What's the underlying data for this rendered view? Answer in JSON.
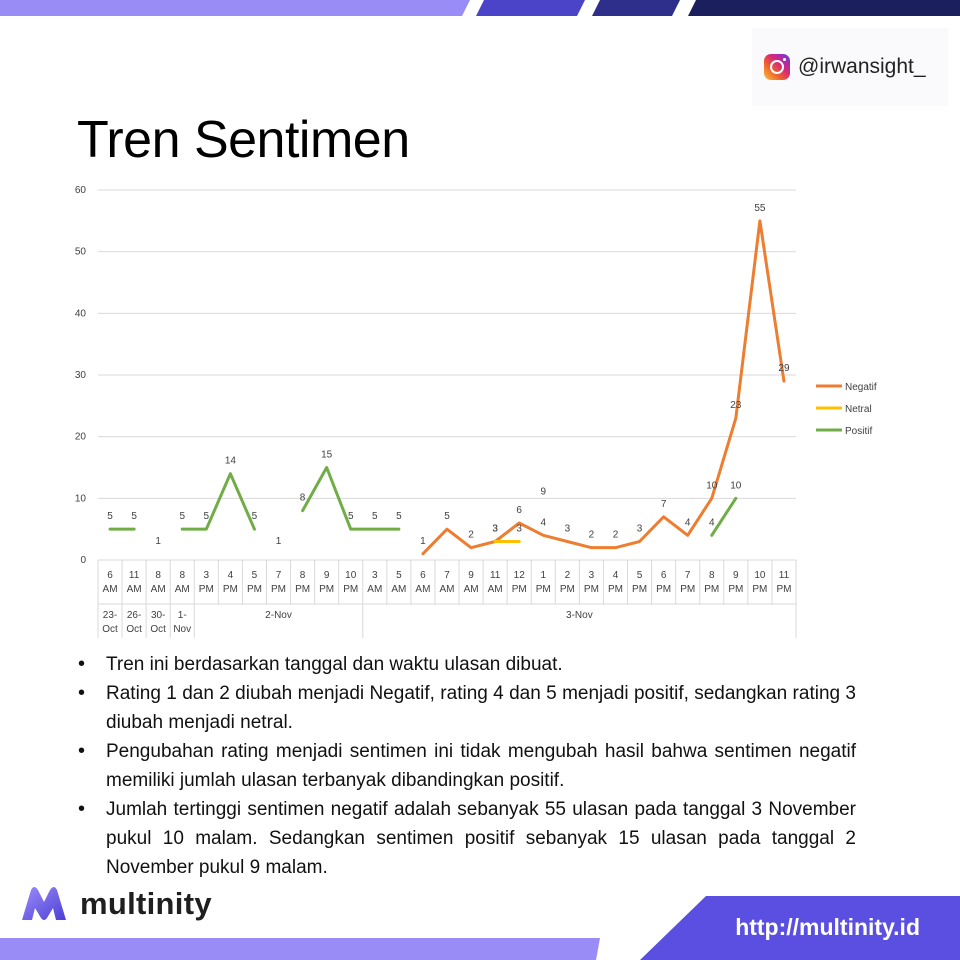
{
  "header": {
    "handle": "@irwansight_",
    "icon": "instagram-icon"
  },
  "title": "Tren Sentimen",
  "chart_data": {
    "type": "line",
    "ylim": [
      0,
      60
    ],
    "yticks": [
      0,
      10,
      20,
      30,
      40,
      50,
      60
    ],
    "grid": true,
    "legend_position": "right",
    "categories": [
      {
        "time": [
          "6",
          "AM"
        ]
      },
      {
        "time": [
          "11",
          "AM"
        ]
      },
      {
        "time": [
          "8",
          "AM"
        ]
      },
      {
        "time": [
          "8",
          "AM"
        ]
      },
      {
        "time": [
          "3",
          "PM"
        ]
      },
      {
        "time": [
          "4",
          "PM"
        ]
      },
      {
        "time": [
          "5",
          "PM"
        ]
      },
      {
        "time": [
          "7",
          "PM"
        ]
      },
      {
        "time": [
          "8",
          "PM"
        ]
      },
      {
        "time": [
          "9",
          "PM"
        ]
      },
      {
        "time": [
          "10",
          "PM"
        ]
      },
      {
        "time": [
          "3",
          "AM"
        ]
      },
      {
        "time": [
          "5",
          "AM"
        ]
      },
      {
        "time": [
          "6",
          "AM"
        ]
      },
      {
        "time": [
          "7",
          "AM"
        ]
      },
      {
        "time": [
          "9",
          "AM"
        ]
      },
      {
        "time": [
          "11",
          "AM"
        ]
      },
      {
        "time": [
          "12",
          "PM"
        ]
      },
      {
        "time": [
          "1",
          "PM"
        ]
      },
      {
        "time": [
          "2",
          "PM"
        ]
      },
      {
        "time": [
          "3",
          "PM"
        ]
      },
      {
        "time": [
          "4",
          "PM"
        ]
      },
      {
        "time": [
          "5",
          "PM"
        ]
      },
      {
        "time": [
          "6",
          "PM"
        ]
      },
      {
        "time": [
          "7",
          "PM"
        ]
      },
      {
        "time": [
          "8",
          "PM"
        ]
      },
      {
        "time": [
          "9",
          "PM"
        ]
      },
      {
        "time": [
          "10",
          "PM"
        ]
      },
      {
        "time": [
          "11",
          "PM"
        ]
      }
    ],
    "date_groups": [
      {
        "label": [
          "23-",
          "Oct"
        ],
        "start": 0,
        "end": 0
      },
      {
        "label": [
          "26-",
          "Oct"
        ],
        "start": 1,
        "end": 1
      },
      {
        "label": [
          "30-",
          "Oct"
        ],
        "start": 2,
        "end": 2
      },
      {
        "label": [
          "1-",
          "Nov"
        ],
        "start": 3,
        "end": 3
      },
      {
        "label": [
          "2-Nov"
        ],
        "start": 4,
        "end": 10
      },
      {
        "label": [
          "3-Nov"
        ],
        "start": 11,
        "end": 28
      }
    ],
    "series": [
      {
        "name": "Negatif",
        "color": "#ED7D31",
        "values": [
          null,
          null,
          1,
          null,
          null,
          null,
          null,
          1,
          null,
          null,
          null,
          null,
          null,
          1,
          5,
          2,
          3,
          6,
          4,
          3,
          2,
          2,
          3,
          7,
          4,
          10,
          23,
          55,
          29
        ],
        "label_values": [
          null,
          null,
          1,
          null,
          null,
          null,
          null,
          1,
          null,
          null,
          null,
          null,
          null,
          1,
          5,
          2,
          3,
          6,
          4,
          3,
          2,
          2,
          3,
          7,
          4,
          10,
          23,
          55,
          29
        ]
      },
      {
        "name": "Netral",
        "color": "#FFC000",
        "values": [
          null,
          null,
          null,
          null,
          null,
          null,
          null,
          null,
          null,
          null,
          null,
          null,
          null,
          null,
          null,
          null,
          3,
          3,
          null,
          null,
          null,
          null,
          null,
          null,
          null,
          null,
          null,
          null,
          null
        ],
        "label_values": [
          null,
          null,
          null,
          null,
          null,
          null,
          null,
          null,
          null,
          null,
          null,
          null,
          null,
          null,
          null,
          null,
          3,
          3,
          null,
          null,
          null,
          null,
          null,
          null,
          null,
          null,
          null,
          null,
          null
        ]
      },
      {
        "name": "Positif",
        "color": "#70AD47",
        "values": [
          5,
          5,
          null,
          5,
          5,
          14,
          5,
          null,
          8,
          15,
          5,
          5,
          5,
          null,
          null,
          null,
          null,
          null,
          9,
          null,
          null,
          null,
          null,
          null,
          null,
          4,
          10,
          null,
          null
        ],
        "label_values": [
          5,
          5,
          null,
          5,
          5,
          14,
          5,
          null,
          8,
          15,
          5,
          5,
          5,
          null,
          null,
          null,
          null,
          null,
          9,
          null,
          null,
          null,
          null,
          null,
          null,
          4,
          10,
          null,
          null
        ]
      }
    ]
  },
  "bullets": [
    "Tren ini berdasarkan tanggal dan waktu ulasan dibuat.",
    "Rating 1 dan 2 diubah menjadi Negatif, rating 4 dan 5 menjadi positif, sedangkan rating 3 diubah menjadi netral.",
    "Pengubahan rating menjadi sentimen ini tidak mengubah hasil bahwa sentimen negatif memiliki jumlah ulasan terbanyak dibandingkan positif.",
    "Jumlah tertinggi sentimen negatif adalah sebanyak 55 ulasan pada tanggal 3 November pukul 10 malam. Sedangkan sentimen positif sebanyak 15 ulasan pada tanggal 2 November pukul 9 malam."
  ],
  "brand": {
    "name": "multinity",
    "logo": "multinity-logo-icon",
    "url": "http://multinity.id"
  },
  "colors": {
    "accent_purple": "#8B7CF6",
    "navy": "#1B1F5E",
    "grid": "#D9D9D9"
  }
}
